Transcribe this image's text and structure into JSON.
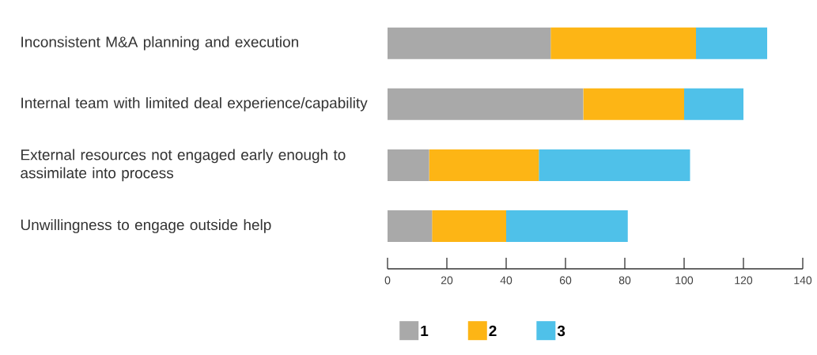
{
  "chart_data": {
    "type": "bar",
    "orientation": "horizontal",
    "stacked": true,
    "categories": [
      "Inconsistent M&A planning and execution",
      "Internal team with limited deal experience/capability",
      "External resources not engaged early enough to assimilate into process",
      "Unwillingness to engage outside help"
    ],
    "series": [
      {
        "name": "1",
        "color": "#a9a9a9",
        "values": [
          55,
          66,
          14,
          15
        ]
      },
      {
        "name": "2",
        "color": "#fdb515",
        "values": [
          49,
          34,
          37,
          25
        ]
      },
      {
        "name": "3",
        "color": "#4fc1e9",
        "values": [
          24,
          20,
          51,
          41
        ]
      }
    ],
    "xlim": [
      0,
      140
    ],
    "xticks": [
      0,
      20,
      40,
      60,
      80,
      100,
      120,
      140
    ],
    "legend": "bottom"
  }
}
